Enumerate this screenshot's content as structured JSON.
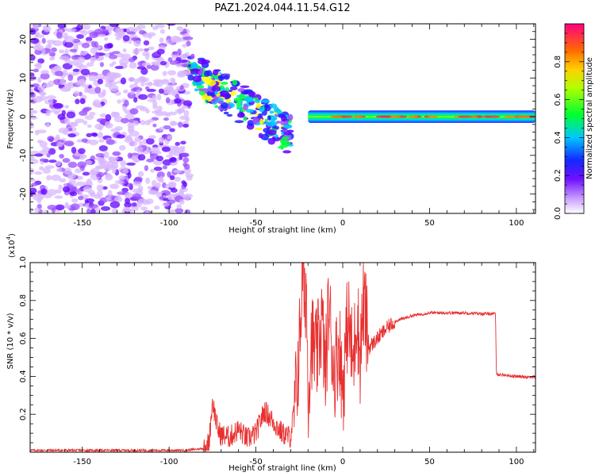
{
  "title": "PAZ1.2024.044.11.54.G12",
  "chart_data": [
    {
      "type": "heatmap",
      "xlabel": "Height of straight line (km)",
      "ylabel": "Frequency (Hz)",
      "xlim": [
        -180,
        111
      ],
      "ylim": [
        -25,
        24
      ],
      "xticks": [
        -150,
        -100,
        -50,
        0,
        50,
        100
      ],
      "yticks": [
        -20,
        -10,
        0,
        10,
        20
      ],
      "colorbar": {
        "label": "Normalized spectral amplitude",
        "range": [
          0,
          1
        ],
        "ticks": [
          0.0,
          0.2,
          0.4,
          0.6,
          0.8
        ],
        "colormap": [
          "#ffffff",
          "#d8b8ff",
          "#9a4dff",
          "#6000ff",
          "#2020ff",
          "#00c8ff",
          "#00ff40",
          "#ffff00",
          "#ff8000",
          "#ff2060",
          "#ff0080"
        ]
      },
      "regions": [
        {
          "name": "noise-field",
          "x": [
            -180,
            -88
          ],
          "y": [
            -25,
            24
          ],
          "level": 0.3
        },
        {
          "name": "scattered-transition",
          "x": [
            -88,
            -30
          ],
          "y_center": [
            12,
            -5
          ],
          "level": 0.5
        },
        {
          "name": "converged-line",
          "x": [
            -20,
            111
          ],
          "y": [
            -1,
            1
          ],
          "level": 0.8
        }
      ]
    },
    {
      "type": "line",
      "xlabel": "Height of straight line (km)",
      "ylabel": "SNR (10 * v/v)",
      "yscale_label": "(x10",
      "yscale_exp": "4",
      "yscale_close": ")",
      "xlim": [
        -180,
        111
      ],
      "ylim": [
        0,
        1.0
      ],
      "xticks": [
        -150,
        -100,
        -50,
        0,
        50,
        100
      ],
      "yticks": [
        0.2,
        0.4,
        0.6,
        0.8,
        1.0
      ],
      "line_color": "#e83030",
      "series": [
        {
          "x": [
            -180,
            -150,
            -120,
            -100,
            -90,
            -80,
            -77,
            -75,
            -72,
            -70,
            -65,
            -60,
            -55,
            -50,
            -45,
            -40,
            -35,
            -30,
            -27,
            -25,
            -23,
            -22,
            -21,
            -20,
            -18,
            -15,
            -12,
            -10,
            -8,
            -5,
            -2,
            0,
            3,
            6,
            8,
            10,
            12,
            15,
            20,
            25,
            30,
            40,
            50,
            60,
            70,
            80,
            88,
            88.5,
            90,
            100,
            111
          ],
          "y": [
            0.01,
            0.01,
            0.01,
            0.01,
            0.01,
            0.02,
            0.05,
            0.27,
            0.12,
            0.09,
            0.08,
            0.12,
            0.07,
            0.1,
            0.22,
            0.16,
            0.1,
            0.08,
            0.3,
            0.55,
            1.0,
            0.75,
            0.92,
            0.3,
            0.6,
            0.5,
            0.7,
            0.4,
            0.78,
            0.42,
            0.58,
            0.32,
            0.72,
            0.45,
            0.76,
            0.5,
            0.8,
            0.55,
            0.6,
            0.65,
            0.69,
            0.72,
            0.735,
            0.735,
            0.735,
            0.73,
            0.73,
            0.41,
            0.41,
            0.4,
            0.395
          ]
        }
      ]
    }
  ]
}
